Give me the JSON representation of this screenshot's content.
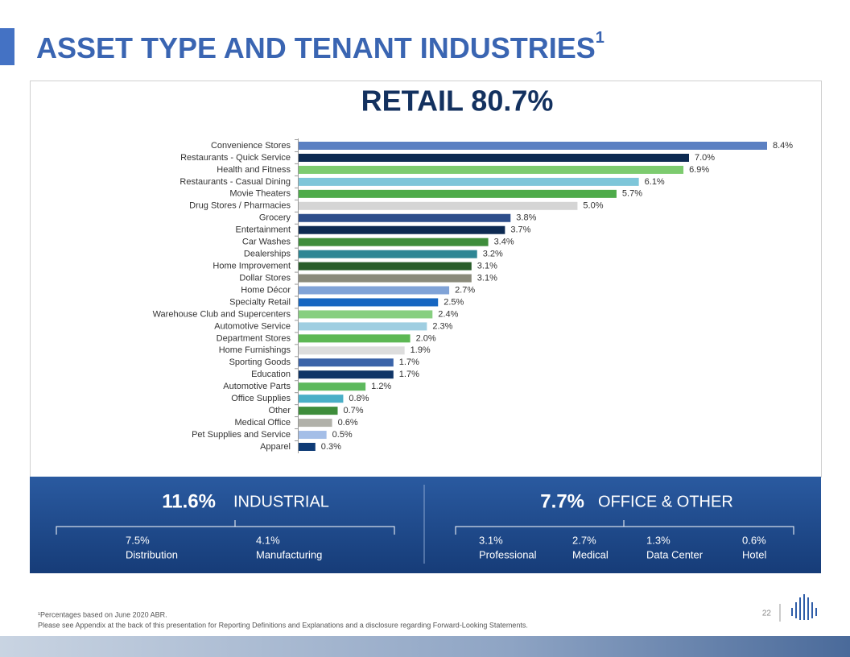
{
  "title": "ASSET TYPE AND TENANT INDUSTRIES",
  "title_superscript": "1",
  "chart_data": {
    "type": "bar",
    "orientation": "horizontal",
    "title": "RETAIL 80.7%",
    "categories": [
      "Convenience Stores",
      "Restaurants - Quick Service",
      "Health and Fitness",
      "Restaurants - Casual Dining",
      "Movie Theaters",
      "Drug Stores / Pharmacies",
      "Grocery",
      "Entertainment",
      "Car Washes",
      "Dealerships",
      "Home Improvement",
      "Dollar Stores",
      "Home Décor",
      "Specialty Retail",
      "Warehouse Club and Supercenters",
      "Automotive Service",
      "Department Stores",
      "Home Furnishings",
      "Sporting Goods",
      "Education",
      "Automotive Parts",
      "Office Supplies",
      "Other",
      "Medical Office",
      "Pet Supplies and Service",
      "Apparel"
    ],
    "values": [
      8.4,
      7.0,
      6.9,
      6.1,
      5.7,
      5.0,
      3.8,
      3.7,
      3.4,
      3.2,
      3.1,
      3.1,
      2.7,
      2.5,
      2.4,
      2.3,
      2.0,
      1.9,
      1.7,
      1.7,
      1.2,
      0.8,
      0.7,
      0.6,
      0.5,
      0.3
    ],
    "value_labels": [
      "8.4%",
      "7.0%",
      "6.9%",
      "6.1%",
      "5.7%",
      "5.0%",
      "3.8%",
      "3.7%",
      "3.4%",
      "3.2%",
      "3.1%",
      "3.1%",
      "2.7%",
      "2.5%",
      "2.4%",
      "2.3%",
      "2.0%",
      "1.9%",
      "1.7%",
      "1.7%",
      "1.2%",
      "0.8%",
      "0.7%",
      "0.6%",
      "0.5%",
      "0.3%"
    ],
    "colors": [
      "#5b80c2",
      "#0d2a52",
      "#7dcb6f",
      "#7ec6d9",
      "#4eab4a",
      "#d5d5d5",
      "#2d4e8b",
      "#0d2a52",
      "#3e8d3b",
      "#2e8694",
      "#2a5e2b",
      "#8a8a7b",
      "#80a3d7",
      "#1666c1",
      "#87cf80",
      "#9fcee1",
      "#5db854",
      "#dddddd",
      "#3b64a9",
      "#0f3567",
      "#5db95d",
      "#4aafc7",
      "#3e8d3b",
      "#b1b1a9",
      "#a4bee7",
      "#0e3b76"
    ]
  },
  "industrial": {
    "total": "11.6%",
    "label": "INDUSTRIAL",
    "items": [
      {
        "value": "7.5%",
        "label": "Distribution"
      },
      {
        "value": "4.1%",
        "label": "Manufacturing"
      }
    ]
  },
  "office": {
    "total": "7.7%",
    "label": "OFFICE & OTHER",
    "items": [
      {
        "value": "3.1%",
        "label": "Professional"
      },
      {
        "value": "2.7%",
        "label": "Medical"
      },
      {
        "value": "1.3%",
        "label": "Data Center"
      },
      {
        "value": "0.6%",
        "label": "Hotel"
      }
    ]
  },
  "footnote": [
    "¹Percentages based on June 2020 ABR.",
    "Please see Appendix at the back of this presentation for Reporting Definitions and Explanations and a disclosure regarding Forward-Looking Statements."
  ],
  "page_number": "22"
}
